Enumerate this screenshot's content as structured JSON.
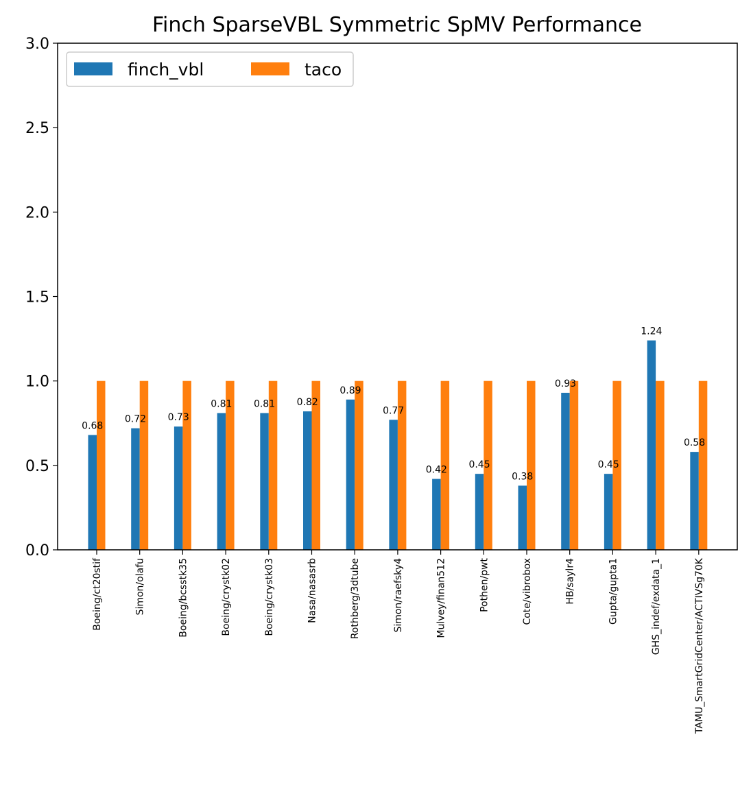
{
  "chart_data": {
    "type": "bar",
    "title": "Finch SparseVBL Symmetric SpMV Performance",
    "xlabel": "",
    "ylabel": "",
    "ylim": [
      0,
      3.0
    ],
    "yticks": [
      "0.0",
      "0.5",
      "1.0",
      "1.5",
      "2.0",
      "2.5",
      "3.0"
    ],
    "grid": false,
    "legend_position": "top-left",
    "categories": [
      "Boeing/ct20stif",
      "Simon/olafu",
      "Boeing/bcsstk35",
      "Boeing/crystk02",
      "Boeing/crystk03",
      "Nasa/nasasrb",
      "Rothberg/3dtube",
      "Simon/raefsky4",
      "Mulvey/finan512",
      "Pothen/pwt",
      "Cote/vibrobox",
      "HB/saylr4",
      "Gupta/gupta1",
      "GHS_indef/exdata_1",
      "TAMU_SmartGridCenter/ACTIVSg70K"
    ],
    "series": [
      {
        "name": "finch_vbl",
        "color": "#1f77b4",
        "values": [
          0.68,
          0.72,
          0.73,
          0.81,
          0.81,
          0.82,
          0.89,
          0.77,
          0.42,
          0.45,
          0.38,
          0.93,
          0.45,
          1.24,
          0.58
        ],
        "labels": [
          "0.68",
          "0.72",
          "0.73",
          "0.81",
          "0.81",
          "0.82",
          "0.89",
          "0.77",
          "0.42",
          "0.45",
          "0.38",
          "0.93",
          "0.45",
          "1.24",
          "0.58"
        ]
      },
      {
        "name": "taco",
        "color": "#ff7f0e",
        "values": [
          1,
          1,
          1,
          1,
          1,
          1,
          1,
          1,
          1,
          1,
          1,
          1,
          1,
          1,
          1
        ]
      }
    ]
  }
}
